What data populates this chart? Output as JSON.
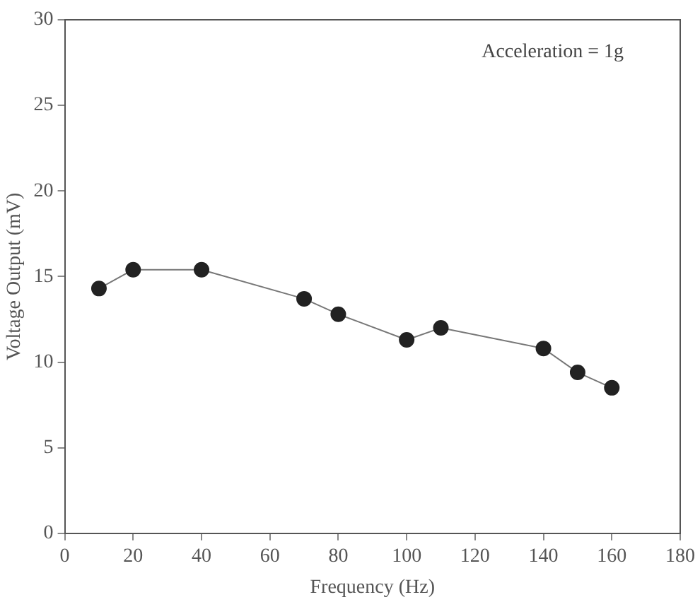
{
  "chart_data": {
    "type": "line",
    "xlabel": "Frequency (Hz)",
    "ylabel": "Voltage Output (mV)",
    "annotations": [
      "Acceleration = 1g"
    ],
    "x": [
      10,
      20,
      40,
      70,
      80,
      100,
      110,
      140,
      150,
      160
    ],
    "series": [
      {
        "color": "#222222",
        "values": [
          14.3,
          15.4,
          15.4,
          13.7,
          12.8,
          11.3,
          12.0,
          10.8,
          9.4,
          8.5
        ]
      }
    ],
    "xlim": [
      0,
      180
    ],
    "xticks": [
      0,
      20,
      40,
      60,
      80,
      100,
      120,
      140,
      160,
      180
    ],
    "ylim": [
      0,
      30
    ],
    "yticks": [
      0,
      5,
      10,
      15,
      20,
      25,
      30
    ],
    "grid": false,
    "legend": false,
    "marker": "circle",
    "line_style": "solid"
  }
}
